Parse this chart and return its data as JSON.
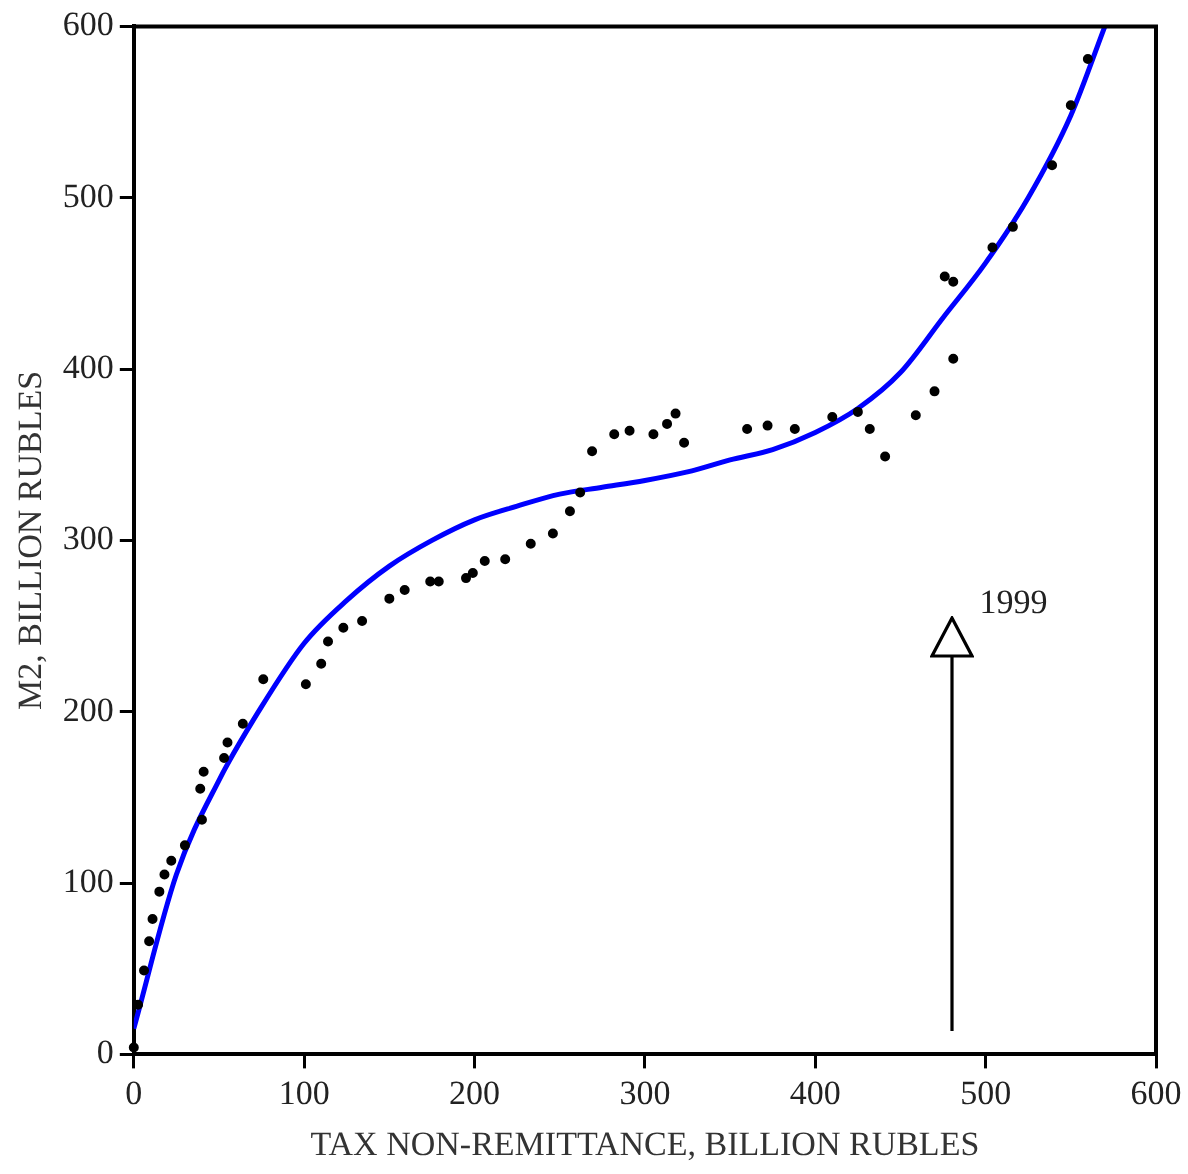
{
  "chart_data": {
    "type": "scatter",
    "xlabel": "TAX NON-REMITTANCE, BILLION RUBLES",
    "ylabel": "M2, BILLION RUBLES",
    "xlim": [
      0,
      600
    ],
    "xticks": [
      0,
      100,
      200,
      300,
      400,
      500,
      600
    ],
    "ylim": [
      0,
      600
    ],
    "yticks": [
      0,
      100,
      200,
      300,
      400,
      500,
      600
    ],
    "grid": false,
    "legend": false,
    "marker": "circle",
    "annotations": [
      "1999"
    ],
    "series": [
      {
        "color": "#000000",
        "x": [
          0,
          2.5,
          6,
          9,
          11,
          15,
          18,
          22,
          30,
          40,
          39,
          41,
          53,
          55,
          64,
          76,
          101,
          110,
          114,
          123,
          134,
          150,
          159,
          174,
          179,
          195,
          199,
          206,
          218,
          233,
          246,
          256,
          262,
          269,
          282,
          291,
          305,
          313,
          318,
          323,
          360,
          372,
          388,
          410,
          425,
          432,
          441,
          459,
          470,
          481,
          476,
          481,
          504,
          516,
          539,
          550,
          560
        ],
        "values": [
          4,
          29,
          49,
          66,
          79,
          95,
          105,
          113,
          122,
          137,
          155,
          165,
          173,
          182,
          193,
          219,
          216,
          228,
          241,
          249,
          253,
          266,
          271,
          276,
          276,
          278,
          281,
          288,
          289,
          298,
          304,
          317,
          328,
          352,
          362,
          364,
          362,
          368,
          374,
          357,
          365,
          367,
          365,
          372,
          375,
          365,
          349,
          373,
          387,
          406,
          454,
          451,
          471,
          483,
          519,
          554,
          581
        ]
      },
      {
        "type": "line",
        "color": "#0000ff",
        "marker": "none",
        "x": [
          0,
          25,
          50,
          75,
          100,
          125,
          150,
          175,
          200,
          225,
          250,
          275,
          300,
          325,
          350,
          375,
          400,
          425,
          450,
          475,
          500,
          525,
          550,
          570
        ],
        "values": [
          15,
          105,
          160,
          203,
          240,
          265,
          285,
          300,
          312,
          320,
          327,
          331,
          335,
          340,
          347,
          353,
          363,
          377,
          398,
          430,
          462,
          500,
          548,
          600
        ]
      }
    ]
  }
}
